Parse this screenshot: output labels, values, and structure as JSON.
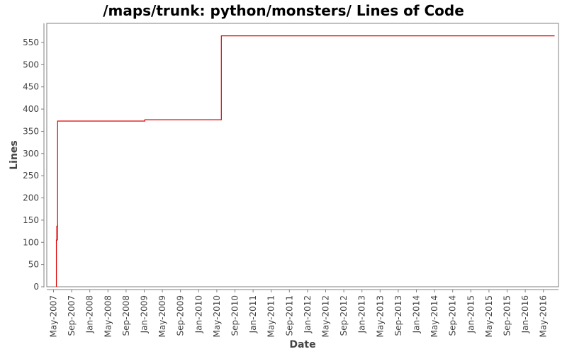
{
  "title": "/maps/trunk: python/monsters/ Lines of Code",
  "colors": {
    "series": "#dd0000",
    "axis": "#808080",
    "text": "#444444",
    "background": "#ffffff"
  },
  "chart_data": {
    "type": "line",
    "title": "/maps/trunk: python/monsters/ Lines of Code",
    "xlabel": "Date",
    "ylabel": "Lines",
    "ylim": [
      0,
      590
    ],
    "yticks": [
      0,
      50,
      100,
      150,
      200,
      250,
      300,
      350,
      400,
      450,
      500,
      550
    ],
    "xticks": [
      "May-2007",
      "Sep-2007",
      "Jan-2008",
      "May-2008",
      "Sep-2008",
      "Jan-2009",
      "May-2009",
      "Sep-2009",
      "Jan-2010",
      "May-2010",
      "Sep-2010",
      "Jan-2011",
      "May-2011",
      "Sep-2011",
      "Jan-2012",
      "May-2012",
      "Sep-2012",
      "Jan-2013",
      "May-2013",
      "Sep-2013",
      "Jan-2014",
      "May-2014",
      "Sep-2014",
      "Jan-2015",
      "May-2015",
      "Sep-2015",
      "Jan-2016",
      "May-2016"
    ],
    "grid": false,
    "legend": null,
    "step": true,
    "series": [
      {
        "name": "Lines of Code",
        "points": [
          {
            "x": "2007-05-20",
            "y": 0
          },
          {
            "x": "2007-05-20",
            "y": 105
          },
          {
            "x": "2007-05-25",
            "y": 137
          },
          {
            "x": "2007-05-28",
            "y": 373
          },
          {
            "x": "2009-01-05",
            "y": 376
          },
          {
            "x": "2010-06-01",
            "y": 565
          },
          {
            "x": "2016-07-15",
            "y": 565
          }
        ]
      }
    ]
  }
}
